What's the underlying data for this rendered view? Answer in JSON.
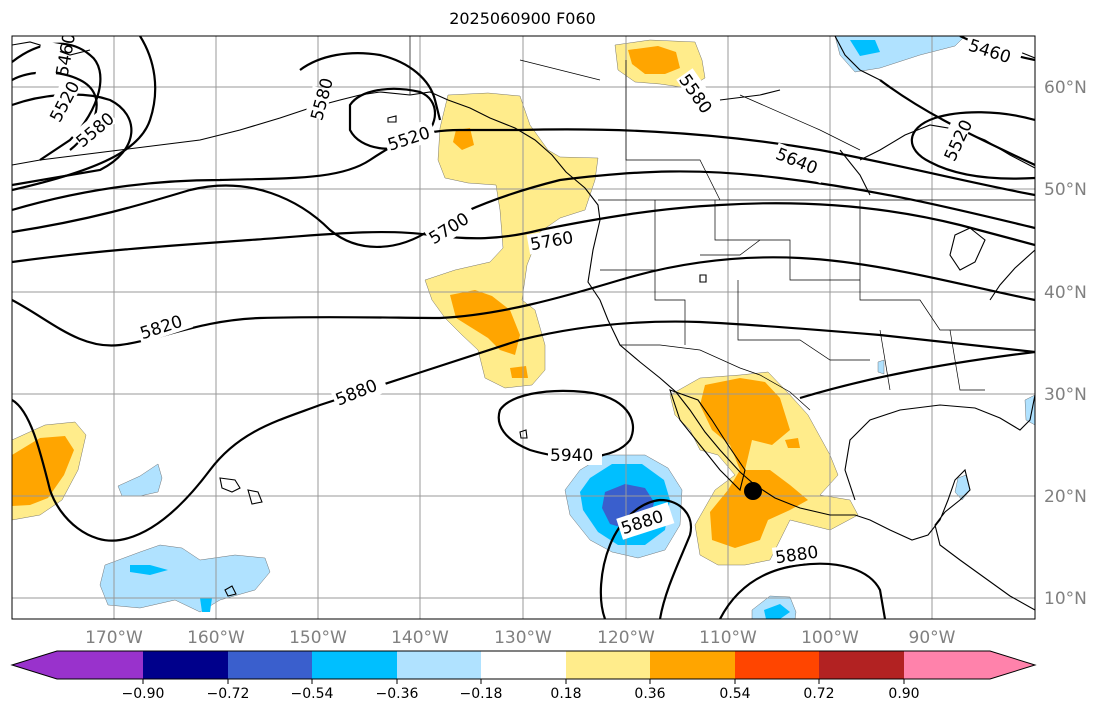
{
  "title": "2025060900 F060",
  "map": {
    "lat_labels": [
      "60°N",
      "50°N",
      "40°N",
      "30°N",
      "20°N",
      "10°N"
    ],
    "lon_labels": [
      "170°W",
      "160°W",
      "150°W",
      "140°W",
      "130°W",
      "120°W",
      "110°W",
      "100°W",
      "90°W"
    ],
    "contour_labels": [
      "5460",
      "5520",
      "5580",
      "5580",
      "5520",
      "5580",
      "5640",
      "5520",
      "5460",
      "5700",
      "5760",
      "5820",
      "5880",
      "5940",
      "5880",
      "5880"
    ],
    "colors": {
      "grid": "#999999",
      "axis_label": "#808080",
      "contour": "#000000"
    }
  },
  "colorbar": {
    "ticks": [
      "−0.90",
      "−0.72",
      "−0.54",
      "−0.36",
      "−0.18",
      "0.18",
      "0.36",
      "0.54",
      "0.72",
      "0.90"
    ],
    "colors": [
      "#9932cc",
      "#00008b",
      "#3a5fcd",
      "#00bfff",
      "#b0e2ff",
      "#ffffff",
      "#ffec8b",
      "#ffa500",
      "#ff4500",
      "#b22222",
      "#ff82ab"
    ]
  }
}
